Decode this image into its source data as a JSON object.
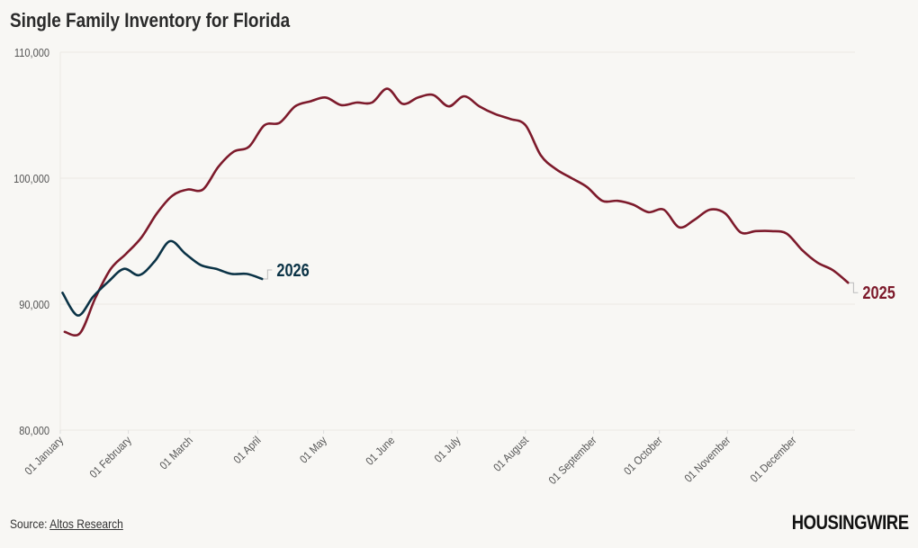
{
  "title": "Single Family Inventory for Florida",
  "footer": {
    "source_label": "Source:",
    "source_link": "Altos Research",
    "logo": "HOUSINGWIRE"
  },
  "colors": {
    "series_2025": "#7d1a2b",
    "series_2026": "#0b3346",
    "background": "#f8f7f4",
    "grid": "#ebe9e4"
  },
  "chart_data": {
    "type": "line",
    "title": "Single Family Inventory for Florida",
    "xlabel": "",
    "ylabel": "",
    "ylim": [
      80000,
      110000
    ],
    "yticks": [
      80000,
      90000,
      100000,
      110000
    ],
    "ytick_labels": [
      "80,000",
      "90,000",
      "100,000",
      "110,000"
    ],
    "xtick_labels": [
      "01 January",
      "01 February",
      "01 March",
      "01 April",
      "01 May",
      "01 June",
      "01 July",
      "01 August",
      "01 September",
      "01 October",
      "01 November",
      "01 December"
    ],
    "grid": "horizontal",
    "legend": "direct labels at line ends",
    "series": [
      {
        "name": "2025",
        "start_date": "2025-01-03",
        "interval": "weekly",
        "values": [
          87800,
          87700,
          90500,
          92800,
          94000,
          95300,
          97200,
          98600,
          99100,
          99100,
          100900,
          102100,
          102500,
          104200,
          104400,
          105700,
          106100,
          106400,
          105800,
          106000,
          106000,
          107100,
          105900,
          106400,
          106600,
          105700,
          106500,
          105700,
          105100,
          104700,
          104200,
          101800,
          100700,
          100000,
          99300,
          98200,
          98200,
          97900,
          97300,
          97500,
          96100,
          96700,
          97500,
          97200,
          95700,
          95800,
          95800,
          95600,
          94300,
          93300,
          92700,
          91700
        ]
      },
      {
        "name": "2026",
        "start_date": "2026-01-02",
        "interval": "weekly",
        "values": [
          90900,
          89100,
          90600,
          91800,
          92800,
          92300,
          93400,
          95000,
          94000,
          93100,
          92800,
          92400,
          92400,
          92000
        ]
      }
    ]
  }
}
